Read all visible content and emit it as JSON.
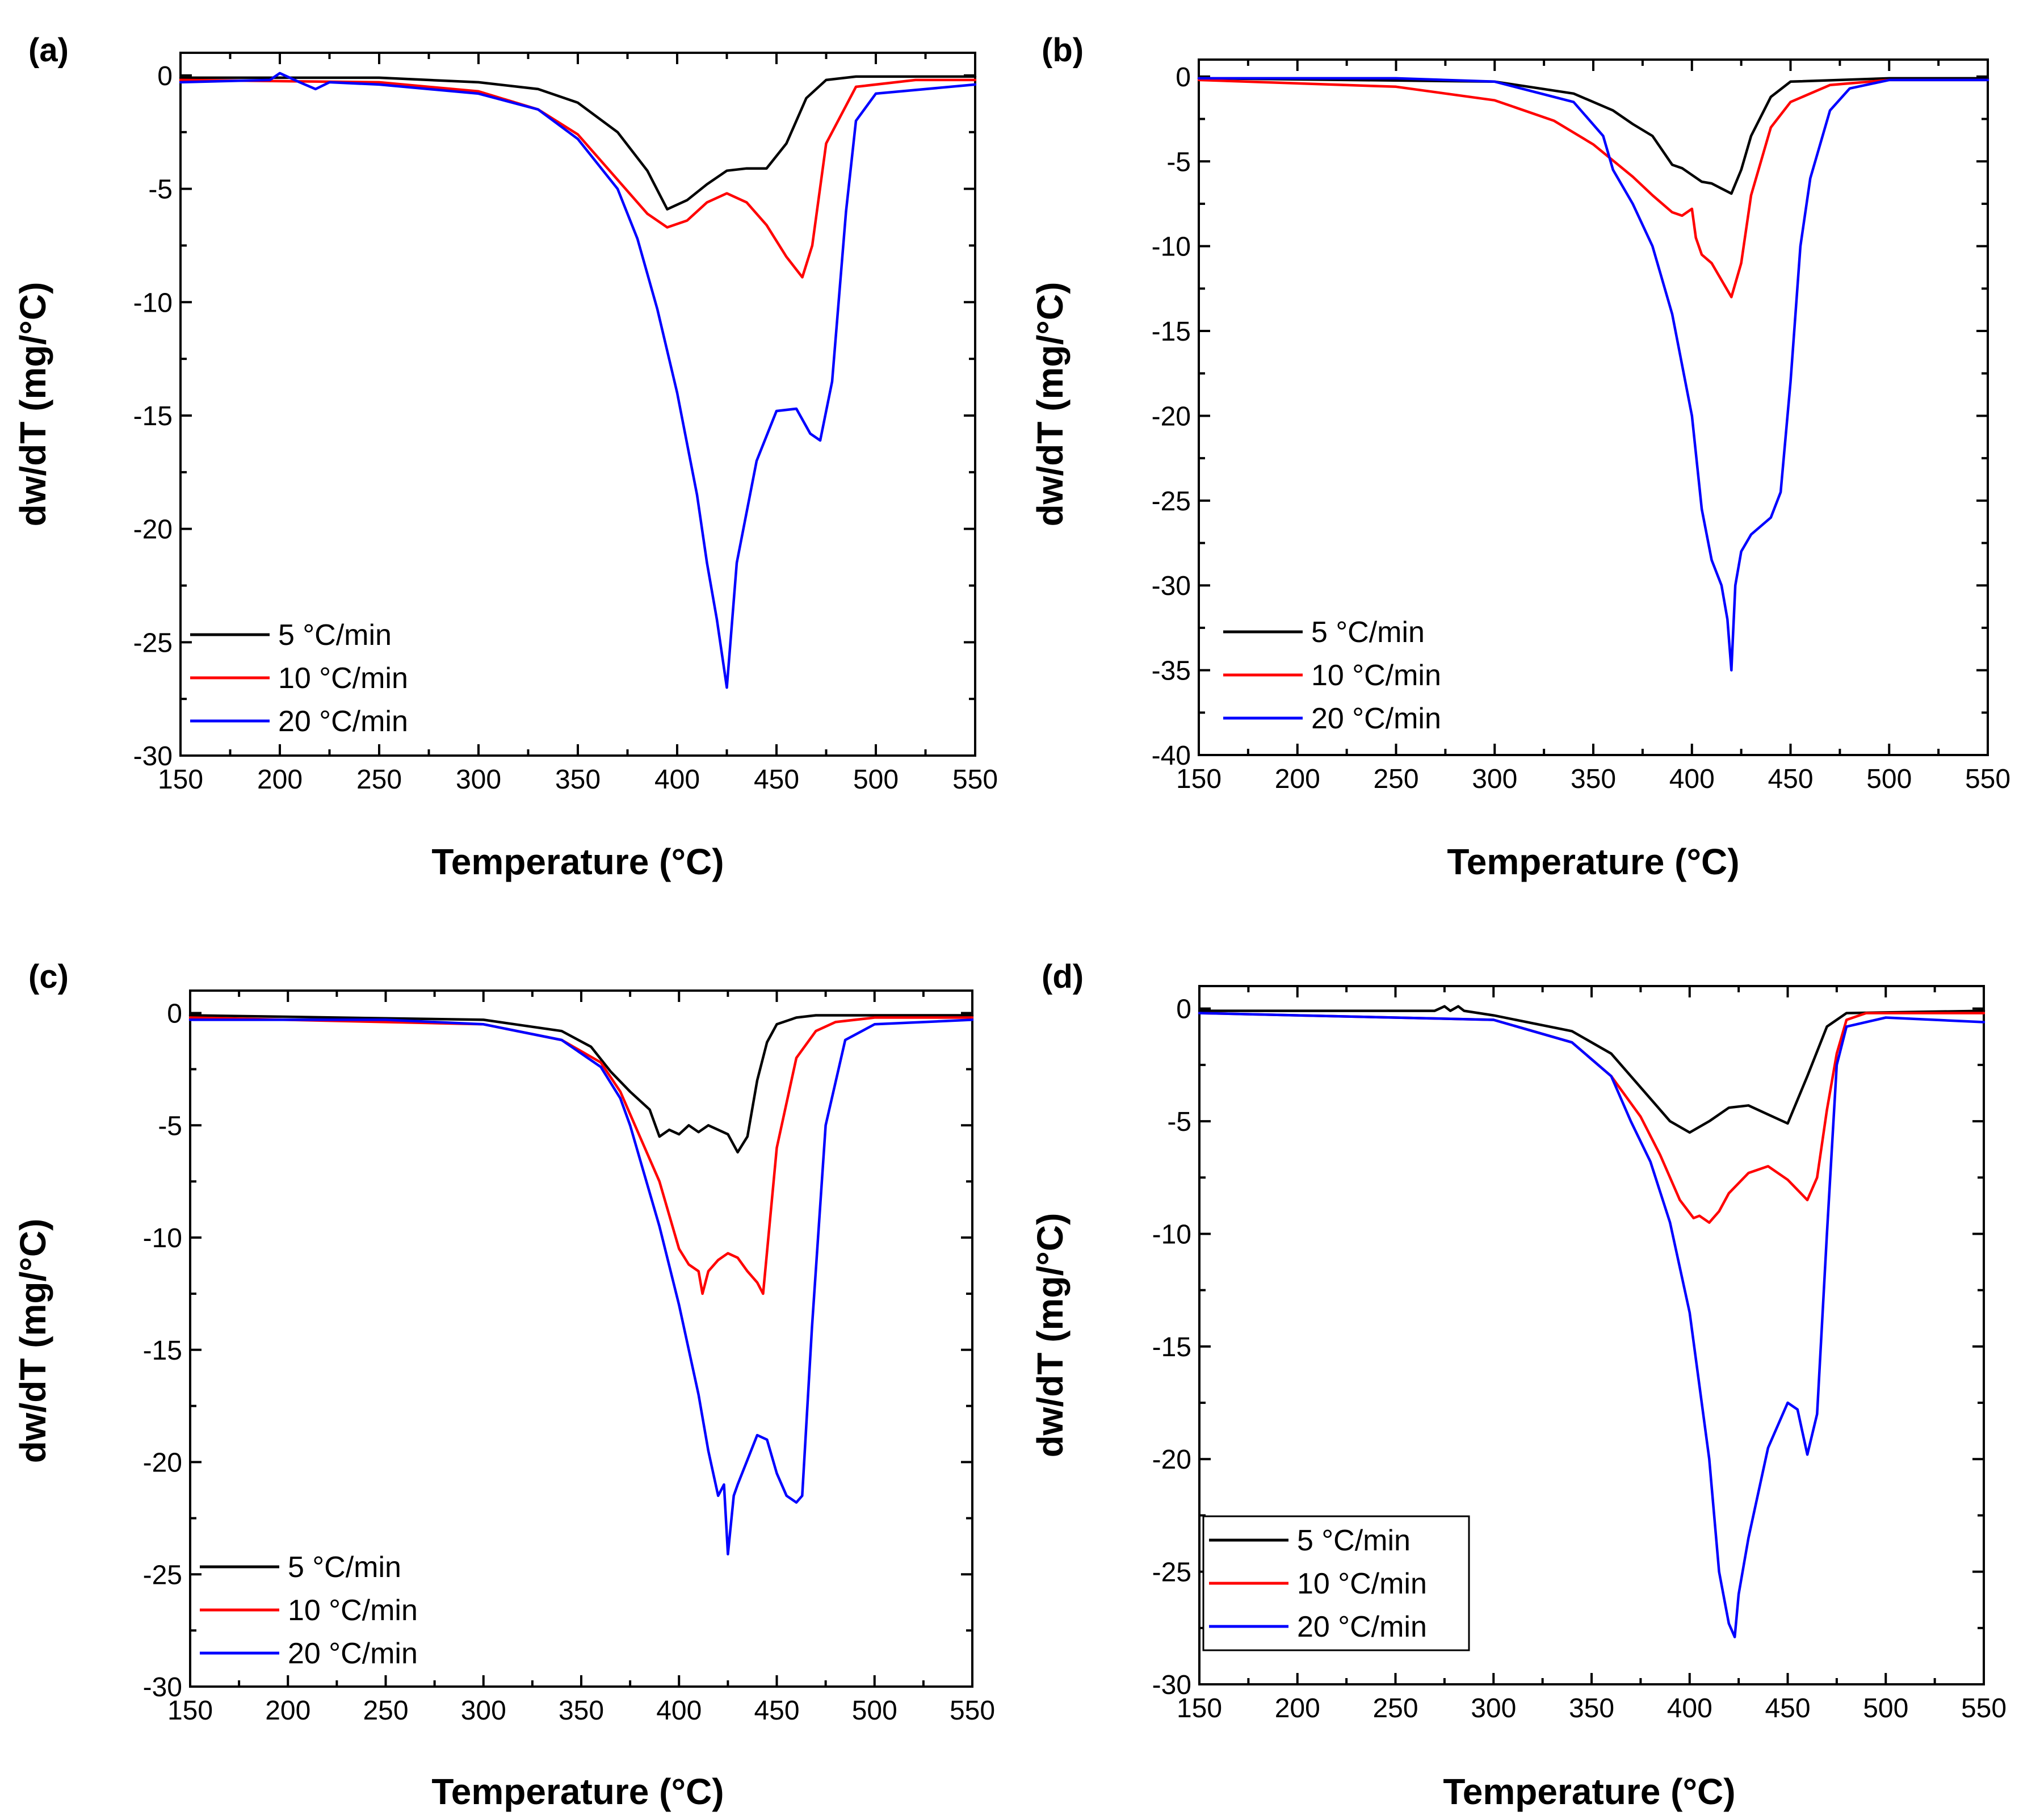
{
  "colors": {
    "s5": "#000000",
    "s10": "#ff0000",
    "s20": "#0000ff"
  },
  "chart_data": [
    {
      "panel": "(a)",
      "type": "line",
      "xlabel": "Temperature (°C)",
      "ylabel": "dw/dT (mg/°C)",
      "xlim": [
        150,
        550
      ],
      "ylim": [
        -30,
        1
      ],
      "xticks": [
        150,
        200,
        250,
        300,
        350,
        400,
        450,
        500,
        550
      ],
      "yticks": [
        0,
        -5,
        -10,
        -15,
        -20,
        -25,
        -30
      ],
      "legend": "bottom-left",
      "legend_boxed": false,
      "grid": false,
      "series": [
        {
          "name": "5 °C/min",
          "color": "#000000",
          "x": [
            150,
            250,
            300,
            330,
            350,
            370,
            385,
            395,
            405,
            415,
            425,
            435,
            445,
            455,
            465,
            475,
            490,
            550
          ],
          "y": [
            -0.1,
            -0.1,
            -0.3,
            -0.6,
            -1.2,
            -2.5,
            -4.2,
            -5.9,
            -5.5,
            -4.8,
            -4.2,
            -4.1,
            -4.1,
            -3.0,
            -1.0,
            -0.2,
            -0.05,
            -0.05
          ]
        },
        {
          "name": "10 °C/min",
          "color": "#ff0000",
          "x": [
            150,
            250,
            300,
            330,
            350,
            370,
            385,
            395,
            405,
            415,
            425,
            435,
            445,
            455,
            463,
            468,
            475,
            490,
            520,
            550
          ],
          "y": [
            -0.2,
            -0.3,
            -0.7,
            -1.5,
            -2.6,
            -4.6,
            -6.1,
            -6.7,
            -6.4,
            -5.6,
            -5.2,
            -5.6,
            -6.6,
            -8.0,
            -8.9,
            -7.5,
            -3.0,
            -0.5,
            -0.2,
            -0.2
          ]
        },
        {
          "name": "20 °C/min",
          "color": "#0000ff",
          "x": [
            150,
            195,
            200,
            210,
            218,
            225,
            250,
            300,
            330,
            350,
            370,
            380,
            390,
            400,
            410,
            415,
            420,
            425,
            430,
            440,
            450,
            460,
            467,
            472,
            478,
            485,
            490,
            500,
            550
          ],
          "y": [
            -0.3,
            -0.2,
            0.1,
            -0.3,
            -0.6,
            -0.3,
            -0.4,
            -0.8,
            -1.5,
            -2.8,
            -5.0,
            -7.2,
            -10.3,
            -14.0,
            -18.5,
            -21.5,
            -24.0,
            -27.0,
            -21.5,
            -17.0,
            -14.8,
            -14.7,
            -15.8,
            -16.1,
            -13.5,
            -6.0,
            -2.0,
            -0.8,
            -0.4
          ]
        }
      ]
    },
    {
      "panel": "(b)",
      "type": "line",
      "xlabel": "Temperature (°C)",
      "ylabel": "dw/dT (mg/°C)",
      "xlim": [
        150,
        550
      ],
      "ylim": [
        -40,
        1
      ],
      "xticks": [
        150,
        200,
        250,
        300,
        350,
        400,
        450,
        500,
        550
      ],
      "yticks": [
        0,
        -5,
        -10,
        -15,
        -20,
        -25,
        -30,
        -35,
        -40
      ],
      "legend": "bottom-left",
      "legend_boxed": false,
      "grid": false,
      "series": [
        {
          "name": "5 °C/min",
          "color": "#000000",
          "x": [
            150,
            300,
            340,
            360,
            370,
            380,
            390,
            395,
            400,
            405,
            410,
            415,
            420,
            425,
            430,
            440,
            450,
            500,
            550
          ],
          "y": [
            -0.1,
            -0.3,
            -1.0,
            -2.0,
            -2.8,
            -3.5,
            -5.2,
            -5.4,
            -5.8,
            -6.2,
            -6.3,
            -6.6,
            -6.9,
            -5.5,
            -3.5,
            -1.2,
            -0.3,
            -0.1,
            -0.1
          ]
        },
        {
          "name": "10 °C/min",
          "color": "#ff0000",
          "x": [
            150,
            250,
            300,
            330,
            350,
            370,
            380,
            390,
            395,
            400,
            402,
            405,
            410,
            415,
            420,
            425,
            430,
            440,
            450,
            470,
            500,
            550
          ],
          "y": [
            -0.2,
            -0.6,
            -1.4,
            -2.6,
            -4.0,
            -5.9,
            -7.0,
            -8.0,
            -8.2,
            -7.8,
            -9.5,
            -10.5,
            -11.0,
            -12.0,
            -13.0,
            -11.0,
            -7.0,
            -3.0,
            -1.5,
            -0.5,
            -0.2,
            -0.2
          ]
        },
        {
          "name": "20 °C/min",
          "color": "#0000ff",
          "x": [
            150,
            250,
            300,
            340,
            355,
            360,
            370,
            380,
            390,
            400,
            405,
            410,
            415,
            418,
            420,
            422,
            425,
            430,
            440,
            445,
            450,
            455,
            460,
            470,
            480,
            500,
            550
          ],
          "y": [
            -0.1,
            -0.1,
            -0.3,
            -1.5,
            -3.5,
            -5.5,
            -7.5,
            -10.0,
            -14.0,
            -20.0,
            -25.5,
            -28.5,
            -30.0,
            -32.0,
            -35.0,
            -30.0,
            -28.0,
            -27.0,
            -26.0,
            -24.5,
            -18.0,
            -10.0,
            -6.0,
            -2.0,
            -0.7,
            -0.2,
            -0.2
          ]
        }
      ]
    },
    {
      "panel": "(c)",
      "type": "line",
      "xlabel": "Temperature (°C)",
      "ylabel": "dw/dT (mg/°C)",
      "xlim": [
        150,
        550
      ],
      "ylim": [
        -30,
        1
      ],
      "xticks": [
        150,
        200,
        250,
        300,
        350,
        400,
        450,
        500,
        550
      ],
      "yticks": [
        0,
        -5,
        -10,
        -15,
        -20,
        -25,
        -30
      ],
      "legend": "bottom-left",
      "legend_boxed": false,
      "grid": false,
      "series": [
        {
          "name": "5 °C/min",
          "color": "#000000",
          "x": [
            150,
            300,
            340,
            355,
            365,
            375,
            385,
            390,
            395,
            400,
            405,
            410,
            415,
            420,
            425,
            430,
            435,
            440,
            445,
            450,
            460,
            470,
            550
          ],
          "y": [
            -0.1,
            -0.3,
            -0.8,
            -1.5,
            -2.6,
            -3.5,
            -4.3,
            -5.5,
            -5.2,
            -5.4,
            -5.0,
            -5.3,
            -5.0,
            -5.2,
            -5.4,
            -6.2,
            -5.5,
            -3.0,
            -1.3,
            -0.5,
            -0.2,
            -0.1,
            -0.1
          ]
        },
        {
          "name": "10 °C/min",
          "color": "#ff0000",
          "x": [
            150,
            300,
            340,
            360,
            370,
            380,
            390,
            400,
            405,
            410,
            412,
            415,
            420,
            425,
            430,
            435,
            440,
            443,
            450,
            460,
            470,
            480,
            500,
            550
          ],
          "y": [
            -0.2,
            -0.5,
            -1.2,
            -2.2,
            -3.5,
            -5.5,
            -7.5,
            -10.5,
            -11.2,
            -11.5,
            -12.5,
            -11.5,
            -11.0,
            -10.7,
            -10.9,
            -11.5,
            -12.0,
            -12.5,
            -6.0,
            -2.0,
            -0.8,
            -0.4,
            -0.2,
            -0.2
          ]
        },
        {
          "name": "20 °C/min",
          "color": "#0000ff",
          "x": [
            150,
            250,
            300,
            340,
            360,
            370,
            375,
            380,
            390,
            400,
            410,
            415,
            420,
            423,
            425,
            428,
            430,
            440,
            445,
            450,
            455,
            460,
            463,
            468,
            475,
            485,
            500,
            550
          ],
          "y": [
            -0.3,
            -0.3,
            -0.5,
            -1.2,
            -2.4,
            -3.8,
            -5.0,
            -6.5,
            -9.5,
            -13.0,
            -17.0,
            -19.5,
            -21.5,
            -21.0,
            -24.1,
            -21.5,
            -21.0,
            -18.8,
            -19.0,
            -20.5,
            -21.5,
            -21.8,
            -21.5,
            -14.0,
            -5.0,
            -1.2,
            -0.5,
            -0.3
          ]
        }
      ]
    },
    {
      "panel": "(d)",
      "type": "line",
      "xlabel": "Temperature (°C)",
      "ylabel": "dw/dT (mg/°C)",
      "xlim": [
        150,
        550
      ],
      "ylim": [
        -30,
        1
      ],
      "xticks": [
        150,
        200,
        250,
        300,
        350,
        400,
        450,
        500,
        550
      ],
      "yticks": [
        0,
        -5,
        -10,
        -15,
        -20,
        -25,
        -30
      ],
      "legend": "bottom-left",
      "legend_boxed": true,
      "grid": false,
      "series": [
        {
          "name": "5 °C/min",
          "color": "#000000",
          "x": [
            150,
            270,
            275,
            278,
            282,
            285,
            300,
            340,
            360,
            375,
            390,
            400,
            410,
            420,
            430,
            440,
            450,
            460,
            470,
            480,
            550
          ],
          "y": [
            -0.1,
            -0.1,
            0.1,
            -0.1,
            0.1,
            -0.1,
            -0.3,
            -1.0,
            -2.0,
            -3.5,
            -5.0,
            -5.5,
            -5.0,
            -4.4,
            -4.3,
            -4.7,
            -5.1,
            -3.0,
            -0.8,
            -0.2,
            -0.1
          ]
        },
        {
          "name": "10 °C/min",
          "color": "#ff0000",
          "x": [
            150,
            300,
            340,
            360,
            375,
            385,
            395,
            402,
            405,
            410,
            415,
            420,
            430,
            440,
            450,
            460,
            465,
            470,
            475,
            480,
            490,
            550
          ],
          "y": [
            -0.2,
            -0.5,
            -1.5,
            -3.0,
            -4.8,
            -6.5,
            -8.5,
            -9.3,
            -9.2,
            -9.5,
            -9.0,
            -8.2,
            -7.3,
            -7.0,
            -7.6,
            -8.5,
            -7.5,
            -4.5,
            -2.0,
            -0.5,
            -0.2,
            -0.2
          ]
        },
        {
          "name": "20 °C/min",
          "color": "#0000ff",
          "x": [
            150,
            300,
            340,
            360,
            370,
            380,
            390,
            400,
            410,
            415,
            420,
            423,
            425,
            430,
            440,
            450,
            455,
            460,
            465,
            470,
            475,
            480,
            500,
            550
          ],
          "y": [
            -0.2,
            -0.5,
            -1.5,
            -3.0,
            -5.0,
            -6.8,
            -9.5,
            -13.5,
            -20.0,
            -25.0,
            -27.3,
            -27.9,
            -26.0,
            -23.5,
            -19.5,
            -17.5,
            -17.8,
            -19.8,
            -18.0,
            -10.0,
            -2.5,
            -0.8,
            -0.4,
            -0.6
          ]
        }
      ]
    }
  ]
}
